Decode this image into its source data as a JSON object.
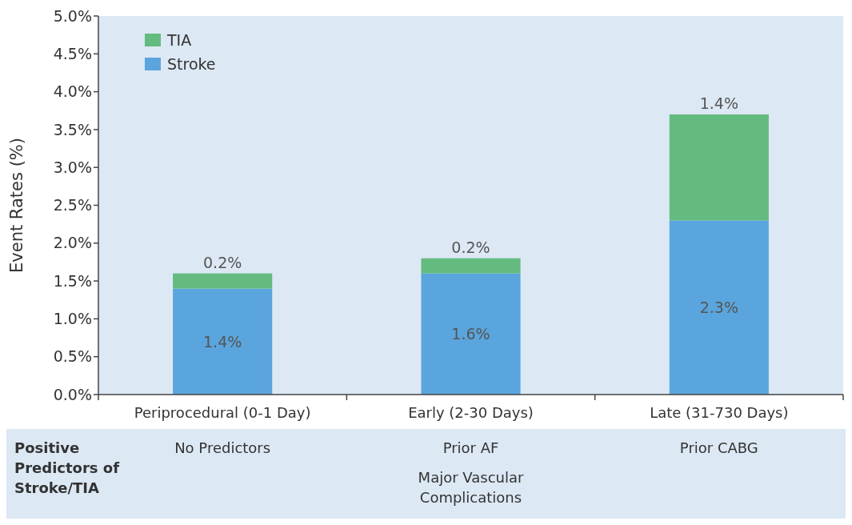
{
  "chart_data": {
    "type": "bar",
    "stacked": true,
    "ylabel": "Event Rates (%)",
    "categories": [
      "Periprocedural (0-1 Day)",
      "Early (2-30 Days)",
      "Late (31-730 Days)"
    ],
    "series": [
      {
        "name": "Stroke",
        "color": "#5aa5dd",
        "values": [
          1.4,
          1.6,
          2.3
        ],
        "value_labels": [
          "1.4%",
          "1.6%",
          "2.3%"
        ]
      },
      {
        "name": "TIA",
        "color": "#63bb80",
        "values": [
          0.2,
          0.2,
          1.4
        ],
        "value_labels": [
          "0.2%",
          "0.2%",
          "1.4%"
        ]
      }
    ],
    "ylim": [
      0,
      5
    ],
    "yticks": [
      {
        "value": 0,
        "label": "0.0%"
      },
      {
        "value": 0.5,
        "label": "0.5%"
      },
      {
        "value": 1,
        "label": "1.0%"
      },
      {
        "value": 1.5,
        "label": "1.5%"
      },
      {
        "value": 2,
        "label": "2.0%"
      },
      {
        "value": 2.5,
        "label": "2.5%"
      },
      {
        "value": 3,
        "label": "3.0%"
      },
      {
        "value": 3.5,
        "label": "3.5%"
      },
      {
        "value": 4,
        "label": "4.0%"
      },
      {
        "value": 4.5,
        "label": "4.5%"
      },
      {
        "value": 5,
        "label": "5.0%"
      }
    ],
    "legend": "top left",
    "annotations": [
      "Positive Predictors of Stroke/TIA",
      "No Predictors",
      "Prior AF\nMajor Vascular Complications",
      "Prior CABG"
    ]
  }
}
